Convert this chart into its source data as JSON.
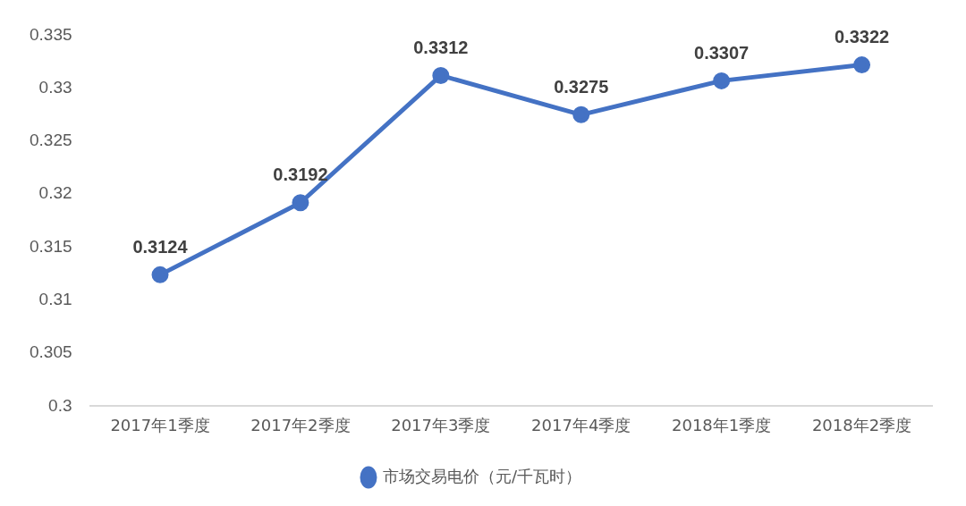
{
  "chart_data": {
    "type": "line",
    "categories": [
      "2017年1季度",
      "2017年2季度",
      "2017年3季度",
      "2017年4季度",
      "2018年1季度",
      "2018年2季度"
    ],
    "series": [
      {
        "name": "市场交易电价（元/千瓦时）",
        "color": "#4472c4",
        "values": [
          0.3124,
          0.3192,
          0.3312,
          0.3275,
          0.3307,
          0.3322
        ]
      }
    ],
    "ylim": [
      0.3,
      0.335
    ],
    "yticks": [
      0.3,
      0.305,
      0.31,
      0.315,
      0.32,
      0.325,
      0.33,
      0.335
    ],
    "grid": false,
    "legend": "bottom",
    "marker": "circle",
    "line_style": "solid",
    "data_labels": true
  }
}
